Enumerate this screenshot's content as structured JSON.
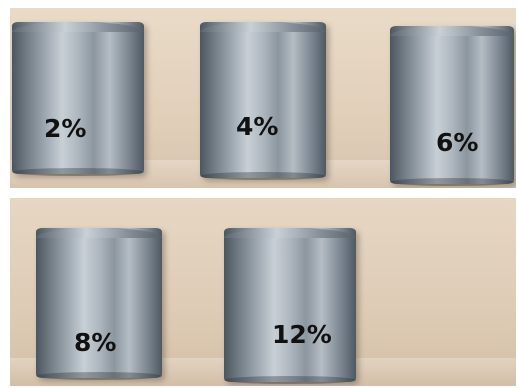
{
  "samples": [
    {
      "label": "2%"
    },
    {
      "label": "4%"
    },
    {
      "label": "6%"
    },
    {
      "label": "8%"
    },
    {
      "label": "12%"
    }
  ]
}
